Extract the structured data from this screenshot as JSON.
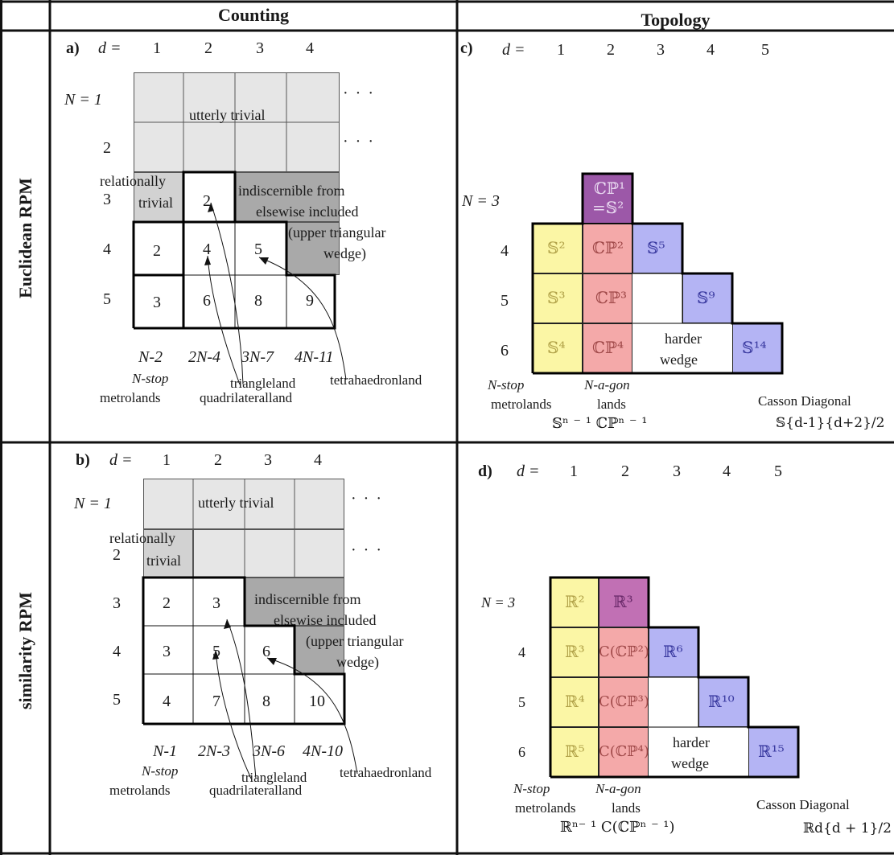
{
  "headers": {
    "counting": "Counting",
    "topology": "Topology"
  },
  "row_labels": {
    "euclidean": "Euclidean RPM",
    "similarity": "similarity  RPM"
  },
  "panel_a": {
    "label": "a)",
    "d_label": "d =",
    "d_values": [
      "1",
      "2",
      "3",
      "4"
    ],
    "n_label": "N = 1",
    "n_values": [
      "2",
      "3",
      "4",
      "5"
    ],
    "cells": [
      "2",
      "2",
      "4",
      "5",
      "3",
      "6",
      "8",
      "9"
    ],
    "utterly_trivial": "utterly trivial",
    "relationally": "relationally",
    "trivial": "trivial",
    "indiscernible": [
      "indiscernible from",
      "elsewise included",
      "(upper triangular",
      "wedge)"
    ],
    "dots": "·  ·  ·",
    "bottom_formulas": [
      "N-2",
      "2N-4",
      "3N-7",
      "4N-11"
    ],
    "bottom_labels": {
      "nstop": "N-stop",
      "metrolands": "metrolands",
      "triangleland": "triangleland",
      "quadrilateralland": "quadrilateralland",
      "tetrahaedronland": "tetrahaedronland"
    }
  },
  "panel_b": {
    "label": "b)",
    "d_label": "d =",
    "d_values": [
      "1",
      "2",
      "3",
      "4"
    ],
    "n_label": "N = 1",
    "n_values": [
      "2",
      "3",
      "4",
      "5"
    ],
    "cells": [
      "2",
      "3",
      "3",
      "5",
      "6",
      "4",
      "7",
      "8",
      "10"
    ],
    "utterly_trivial": "utterly trivial",
    "relationally": "relationally",
    "trivial": "trivial",
    "indiscernible": [
      "indiscernible from",
      "elsewise included",
      "(upper triangular",
      "wedge)"
    ],
    "dots": "·  ·  ·",
    "bottom_formulas": [
      "N-1",
      "2N-3",
      "3N-6",
      "4N-10"
    ],
    "bottom_labels": {
      "nstop": "N-stop",
      "metrolands": "metrolands",
      "triangleland": "triangleland",
      "quadrilateralland": "quadrilateralland",
      "tetrahaedronland": "tetrahaedronland"
    }
  },
  "panel_c": {
    "label": "c)",
    "d_label": "d =",
    "d_values": [
      "1",
      "2",
      "3",
      "4",
      "5"
    ],
    "n_label": "N = 3",
    "n_values": [
      "4",
      "5",
      "6"
    ],
    "cells": {
      "cp1": "ℂℙ¹",
      "s2b": "=𝕊²",
      "s2": "𝕊²",
      "cp2": "ℂℙ²",
      "s5": "𝕊⁵",
      "s3": "𝕊³",
      "cp3": "ℂℙ³",
      "s9": "𝕊⁹",
      "s4": "𝕊⁴",
      "cp4": "ℂℙ⁴",
      "s14": "𝕊¹⁴"
    },
    "harder": "harder",
    "wedge": "wedge",
    "nstop": "N-stop",
    "metrolands": "metrolands",
    "nagon": "N-a-gon",
    "lands": "lands",
    "casson": "Casson Diagonal",
    "formula_left": "𝕊ⁿ ⁻ ¹ ℂℙⁿ ⁻ ¹",
    "formula_right": "𝕊{d-1}{d+2}/2"
  },
  "panel_d": {
    "label": "d)",
    "d_label": "d =",
    "d_values": [
      "1",
      "2",
      "3",
      "4",
      "5"
    ],
    "n_label": "N = 3",
    "n_values": [
      "4",
      "5",
      "6"
    ],
    "cells": {
      "r2": "ℝ²",
      "r3top": "ℝ³",
      "r3": "ℝ³",
      "ccp2": "C(ℂℙ²)",
      "r6": "ℝ⁶",
      "r4": "ℝ⁴",
      "ccp3": "C(ℂℙ³)",
      "r10": "ℝ¹⁰",
      "r5": "ℝ⁵",
      "ccp4": "C(ℂℙ⁴)",
      "r15": "ℝ¹⁵"
    },
    "harder": "harder",
    "wedge": "wedge",
    "nstop": "N-stop",
    "metrolands": "metrolands",
    "nagon": "N-a-gon",
    "lands": "lands",
    "casson": "Casson Diagonal",
    "formula_left": "ℝⁿ⁻ ¹ C(ℂℙⁿ ⁻ ¹)",
    "formula_right": "ℝd{d + 1}/2"
  },
  "colors": {
    "light_gray": "#e6e6e6",
    "mid_gray": "#d2d2d2",
    "dark_gray": "#a9a9a9",
    "yellow": "#fbf6a5",
    "pink": "#f4a9a9",
    "purple": "#9c58a8",
    "purple_d": "#c170b4",
    "blue": "#b4b4f4"
  }
}
